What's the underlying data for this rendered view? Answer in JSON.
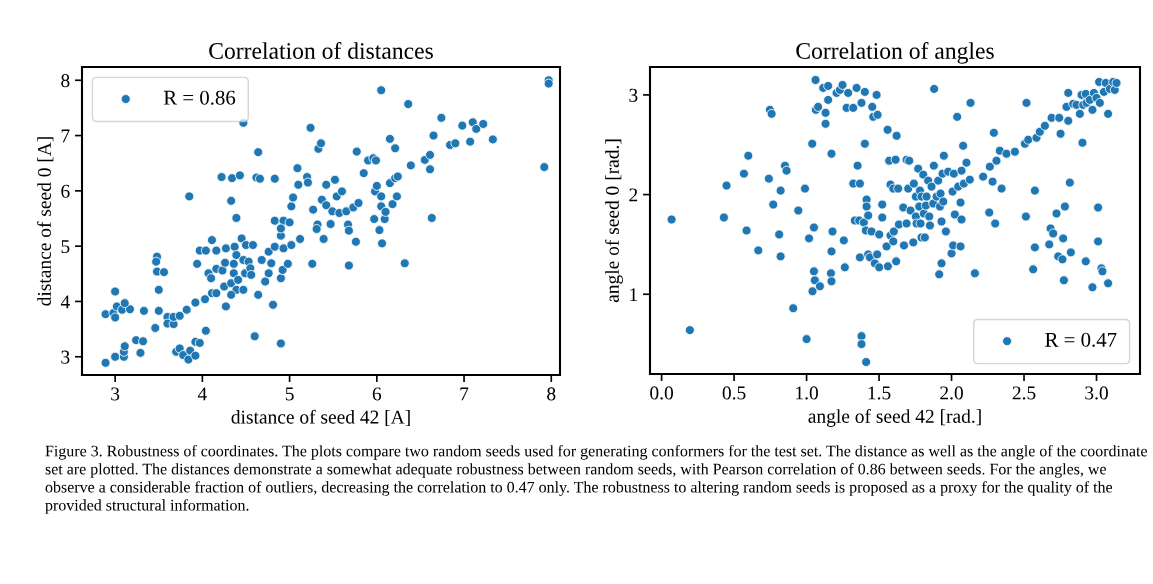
{
  "chart_data": [
    {
      "type": "scatter",
      "title": "Correlation of distances",
      "xlabel": "distance of seed 42 [A]",
      "ylabel": "distance of seed 0 [A]",
      "xlim": [
        2.62,
        8.1
      ],
      "ylim": [
        2.67,
        8.24
      ],
      "xticks": [
        3,
        4,
        5,
        6,
        7,
        8
      ],
      "yticks": [
        3,
        4,
        5,
        6,
        7,
        8
      ],
      "grid": false,
      "legend": "top left",
      "marker": "circle",
      "annotations": [
        "Figure 3. Robustness of coordinates. The plots compare two random seeds used for generating conformers for the test set. The distance as well as the angle of the coordinate set are plotted. The distances demonstrate a somewhat adequate robustness between random seeds, with Pearson correlation of 0.86 between seeds. For the angles, we observe a considerable fraction of outliers, decreasing the correlation to 0.47 only. The robustness to altering random seeds is proposed as a proxy for the quality of the provided structural information."
      ],
      "series": [
        {
          "name": "R = 0.86",
          "color": "#1f77b4",
          "x": [
            2.89,
            3.0,
            3.1,
            3.1,
            3.11,
            3.24,
            3.29,
            3.32,
            3.0,
            2.89,
            2.98,
            3.02,
            3.0,
            3.08,
            3.17,
            3.11,
            3.33,
            3.46,
            3.5,
            3.5,
            3.48,
            3.48,
            3.47,
            3.56,
            3.6,
            3.6,
            3.67,
            3.67,
            3.74,
            3.82,
            3.92,
            3.7,
            3.74,
            3.78,
            3.84,
            3.86,
            3.92,
            3.92,
            3.97,
            4.04,
            4.03,
            4.11,
            4.16,
            4.27,
            3.94,
            3.97,
            4.04,
            4.11,
            4.16,
            4.07,
            4.1,
            4.16,
            4.23,
            4.27,
            4.37,
            4.39,
            4.45,
            4.5,
            4.58,
            4.26,
            4.36,
            4.47,
            4.53,
            4.49,
            4.36,
            4.25,
            4.33,
            4.41,
            4.39,
            4.33,
            4.47,
            4.55,
            4.56,
            4.64,
            4.6,
            4.81,
            4.9,
            4.68,
            4.76,
            4.83,
            4.79,
            4.76,
            4.72,
            4.9,
            4.92,
            4.98,
            4.93,
            5.02,
            5.12,
            4.9,
            4.83,
            4.93,
            5.0,
            4.9,
            4.33,
            4.39,
            4.22,
            4.34,
            4.43,
            4.62,
            4.66,
            4.83,
            4.47,
            4.64,
            3.85,
            5.02,
            5.04,
            5.1,
            5.09,
            5.2,
            5.21,
            5.24,
            5.33,
            5.36,
            5.26,
            5.27,
            5.32,
            5.31,
            5.39,
            5.37,
            5.42,
            5.42,
            5.47,
            5.49,
            5.52,
            5.54,
            5.57,
            5.6,
            5.65,
            5.67,
            5.68,
            5.73,
            5.79,
            5.76,
            5.68,
            5.77,
            5.85,
            5.9,
            5.96,
            5.99,
            5.97,
            5.98,
            6.0,
            6.05,
            6.03,
            6.05,
            6.09,
            6.06,
            6.1,
            6.15,
            6.18,
            6.21,
            6.24,
            6.23,
            6.05,
            6.36,
            6.15,
            6.21,
            6.32,
            6.39,
            6.55,
            6.61,
            6.61,
            6.63,
            6.65,
            6.74,
            6.84,
            6.9,
            6.98,
            7.07,
            7.1,
            7.14,
            7.22,
            7.33,
            7.92,
            7.97,
            7.97
          ],
          "values": [
            2.89,
            3.0,
            3.0,
            3.09,
            3.19,
            3.3,
            3.07,
            3.28,
            4.18,
            3.77,
            3.79,
            3.91,
            3.71,
            3.85,
            3.86,
            3.97,
            3.83,
            3.52,
            3.83,
            4.21,
            4.54,
            4.81,
            4.72,
            4.53,
            3.72,
            3.6,
            3.59,
            3.72,
            3.74,
            3.85,
            3.98,
            3.09,
            3.15,
            3.03,
            2.95,
            3.11,
            3.02,
            3.27,
            3.25,
            3.47,
            4.04,
            4.15,
            4.15,
            3.91,
            4.68,
            4.92,
            4.92,
            5.11,
            4.92,
            4.51,
            4.42,
            4.59,
            4.56,
            4.96,
            4.99,
            4.84,
            5.14,
            5.02,
            5.02,
            4.7,
            4.68,
            4.75,
            4.72,
            4.51,
            4.51,
            4.27,
            4.33,
            4.39,
            4.21,
            4.12,
            4.21,
            4.6,
            4.48,
            4.12,
            3.37,
            3.94,
            3.24,
            4.75,
            4.9,
            4.99,
            4.69,
            4.51,
            4.36,
            4.42,
            4.57,
            4.68,
            4.96,
            5.02,
            5.13,
            5.19,
            5.46,
            5.46,
            5.43,
            5.32,
            5.82,
            5.51,
            6.25,
            6.23,
            6.28,
            6.24,
            6.22,
            6.22,
            7.23,
            6.7,
            5.9,
            5.72,
            5.88,
            6.11,
            6.41,
            6.25,
            6.15,
            7.14,
            6.76,
            6.86,
            4.68,
            5.66,
            5.39,
            5.31,
            5.13,
            5.84,
            5.74,
            6.11,
            5.4,
            5.63,
            6.2,
            5.9,
            5.6,
            5.99,
            5.63,
            5.39,
            5.28,
            5.7,
            5.78,
            5.08,
            4.65,
            6.71,
            6.32,
            6.55,
            6.59,
            6.55,
            5.49,
            5.99,
            6.09,
            5.9,
            5.29,
            5.72,
            5.49,
            5.05,
            5.62,
            6.14,
            5.76,
            6.23,
            6.26,
            5.9,
            7.82,
            7.57,
            6.94,
            6.77,
            4.69,
            6.46,
            6.56,
            6.65,
            6.39,
            5.51,
            7.0,
            7.32,
            6.83,
            6.86,
            7.18,
            6.89,
            7.24,
            7.12,
            7.21,
            6.93,
            6.43,
            8.0,
            7.94
          ]
        }
      ]
    },
    {
      "type": "scatter",
      "title": "Correlation of angles",
      "xlabel": "angle of seed 42 [rad.]",
      "ylabel": "angle of seed 0 [rad.]",
      "xlim": [
        -0.08,
        3.3
      ],
      "ylim": [
        0.2,
        3.28
      ],
      "xticks": [
        {
          "value": 0,
          "label": "0.0"
        },
        0.5,
        {
          "value": 1,
          "label": "1.0"
        },
        1.5,
        {
          "value": 2,
          "label": "2.0"
        },
        2.5,
        {
          "value": 3,
          "label": "3.0"
        }
      ],
      "yticks": [
        1,
        2,
        3
      ],
      "grid": false,
      "legend": "bottom right",
      "marker": "circle",
      "series": [
        {
          "name": "R = 0.47",
          "color": "#1f77b4",
          "x": [
            0.069,
            0.195,
            0.43,
            0.448,
            0.586,
            0.598,
            0.568,
            0.667,
            0.747,
            0.759,
            0.74,
            0.77,
            0.811,
            0.821,
            0.821,
            0.851,
            0.862,
            0.908,
            0.943,
            0.989,
            1.0,
            1.017,
            1.039,
            1.041,
            1.051,
            1.051,
            1.057,
            1.062,
            1.092,
            1.064,
            1.08,
            1.115,
            1.131,
            1.131,
            1.149,
            1.149,
            1.172,
            1.172,
            1.179,
            1.168,
            1.172,
            1.207,
            1.23,
            1.248,
            1.257,
            1.264,
            1.276,
            1.287,
            1.322,
            1.322,
            1.333,
            1.345,
            1.352,
            1.363,
            1.368,
            1.368,
            1.379,
            1.379,
            1.379,
            1.395,
            1.402,
            1.402,
            1.409,
            1.414,
            1.414,
            1.425,
            1.425,
            1.411,
            1.437,
            1.448,
            1.453,
            1.46,
            1.471,
            1.483,
            1.487,
            1.49,
            1.501,
            1.501,
            1.522,
            1.522,
            1.552,
            1.559,
            1.561,
            1.57,
            1.579,
            1.579,
            1.598,
            1.598,
            1.602,
            1.614,
            1.618,
            1.621,
            1.632,
            1.637,
            1.667,
            1.672,
            1.69,
            1.69,
            1.701,
            1.708,
            1.717,
            1.736,
            1.74,
            1.754,
            1.754,
            1.759,
            1.77,
            1.777,
            1.782,
            1.786,
            1.793,
            1.793,
            1.805,
            1.809,
            1.816,
            1.823,
            1.828,
            1.839,
            1.846,
            1.851,
            1.862,
            1.874,
            1.878,
            1.88,
            1.897,
            1.908,
            1.915,
            1.92,
            1.924,
            1.931,
            1.931,
            1.938,
            1.943,
            1.947,
            1.961,
            1.977,
            2.0,
            2.007,
            2.011,
            2.016,
            2.023,
            2.039,
            2.046,
            2.062,
            2.062,
            2.069,
            2.069,
            2.08,
            2.085,
            2.103,
            2.126,
            2.131,
            2.161,
            2.218,
            2.26,
            2.264,
            2.283,
            2.292,
            2.301,
            2.31,
            2.333,
            2.345,
            2.379,
            2.437,
            2.506,
            2.513,
            2.517,
            2.529,
            2.563,
            2.575,
            2.575,
            2.586,
            2.609,
            2.644,
            2.674,
            2.69,
            2.683,
            2.701,
            2.724,
            2.736,
            2.743,
            2.752,
            2.765,
            2.77,
            2.775,
            2.782,
            2.793,
            2.805,
            2.805,
            2.816,
            2.823,
            2.839,
            2.862,
            2.885,
            2.897,
            2.903,
            2.908,
            2.926,
            2.931,
            2.926,
            2.954,
            2.972,
            2.972,
            2.982,
            3.0,
            3.011,
            3.011,
            3.018,
            3.023,
            3.034,
            3.041,
            3.051,
            3.064,
            3.08,
            3.08,
            3.092,
            3.115,
            3.126,
            3.138
          ],
          "values": [
            1.75,
            0.64,
            1.77,
            2.09,
            1.64,
            2.39,
            2.21,
            1.44,
            2.85,
            2.81,
            2.16,
            1.9,
            1.6,
            1.38,
            2.04,
            2.29,
            2.24,
            0.86,
            1.84,
            2.06,
            0.55,
            1.56,
            2.51,
            1.03,
            1.67,
            1.23,
            1.14,
            3.15,
            1.08,
            2.85,
            2.88,
            3.07,
            2.82,
            2.71,
            2.95,
            3.09,
            2.41,
            1.43,
            1.63,
            1.21,
            1.13,
            3.02,
            3.05,
            3.1,
            1.54,
            1.27,
            2.87,
            3.02,
            2.87,
            2.11,
            1.74,
            3.07,
            2.29,
            1.74,
            2.11,
            1.37,
            2.92,
            0.58,
            0.5,
            1.72,
            3.03,
            2.51,
            1.64,
            1.95,
            1.88,
            1.79,
            1.4,
            0.32,
            1.37,
            1.63,
            2.88,
            2.78,
            1.31,
            3.0,
            1.4,
            2.8,
            1.27,
            1.6,
            1.9,
            1.77,
            1.48,
            2.65,
            1.28,
            2.34,
            2.1,
            1.59,
            2.06,
            1.53,
            1.63,
            2.35,
            1.33,
            2.59,
            2.06,
            1.7,
            1.87,
            1.49,
            1.71,
            2.35,
            2.06,
            2.34,
            1.84,
            1.52,
            2.11,
            1.98,
            1.78,
            1.71,
            2.26,
            1.88,
            2.04,
            1.71,
            1.98,
            1.57,
            2.2,
            1.81,
            1.57,
            1.89,
            1.98,
            2.14,
            1.78,
            1.69,
            2.08,
            1.91,
            2.29,
            3.06,
            1.98,
            2.14,
            1.2,
            1.88,
            2.01,
            1.73,
            1.31,
            2.21,
            1.93,
            2.39,
            1.63,
            2.23,
            1.41,
            2.03,
            1.49,
            2.21,
            1.8,
            2.78,
            2.08,
            1.48,
            1.92,
            1.75,
            2.24,
            2.49,
            2.11,
            2.32,
            2.15,
            2.92,
            1.21,
            2.18,
            1.82,
            2.28,
            2.13,
            2.62,
            1.71,
            2.34,
            2.44,
            2.06,
            2.41,
            2.43,
            2.51,
            1.78,
            2.92,
            2.55,
            1.25,
            1.47,
            2.04,
            2.57,
            2.63,
            2.69,
            1.5,
            2.77,
            1.66,
            1.61,
            1.81,
            1.38,
            2.77,
            2.61,
            1.35,
            1.56,
            1.14,
            1.88,
            2.88,
            3.02,
            2.74,
            2.12,
            1.42,
            2.91,
            2.9,
            2.81,
            3.0,
            2.52,
            2.9,
            3.01,
            2.92,
            1.33,
            2.95,
            2.85,
            1.07,
            3.02,
            2.97,
            1.87,
            1.53,
            3.13,
            2.92,
            1.26,
            1.23,
            3.03,
            3.12,
            2.81,
            1.11,
            3.06,
            3.13,
            3.05,
            3.12
          ]
        }
      ]
    }
  ]
}
